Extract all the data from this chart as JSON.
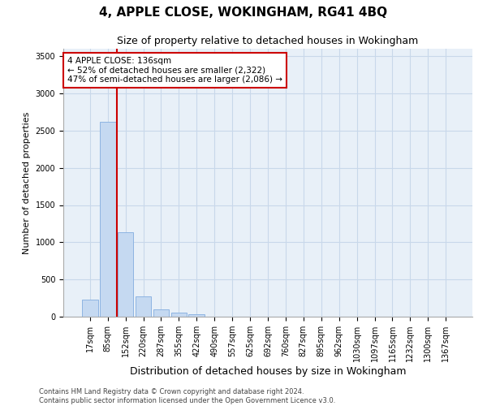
{
  "title": "4, APPLE CLOSE, WOKINGHAM, RG41 4BQ",
  "subtitle": "Size of property relative to detached houses in Wokingham",
  "xlabel": "Distribution of detached houses by size in Wokingham",
  "ylabel": "Number of detached properties",
  "bar_labels": [
    "17sqm",
    "85sqm",
    "152sqm",
    "220sqm",
    "287sqm",
    "355sqm",
    "422sqm",
    "490sqm",
    "557sqm",
    "625sqm",
    "692sqm",
    "760sqm",
    "827sqm",
    "895sqm",
    "962sqm",
    "1030sqm",
    "1097sqm",
    "1165sqm",
    "1232sqm",
    "1300sqm",
    "1367sqm"
  ],
  "bar_values": [
    230,
    2620,
    1130,
    270,
    100,
    50,
    30,
    0,
    0,
    0,
    0,
    0,
    0,
    0,
    0,
    0,
    0,
    0,
    0,
    0,
    0
  ],
  "bar_color": "#c5d9f1",
  "bar_edge_color": "#8db4e2",
  "ylim": [
    0,
    3600
  ],
  "yticks": [
    0,
    500,
    1000,
    1500,
    2000,
    2500,
    3000,
    3500
  ],
  "annotation_text": "4 APPLE CLOSE: 136sqm\n← 52% of detached houses are smaller (2,322)\n47% of semi-detached houses are larger (2,086) →",
  "annotation_box_color": "#ffffff",
  "annotation_box_edge_color": "#cc0000",
  "vline_color": "#cc0000",
  "vline_x": 1,
  "footer_line1": "Contains HM Land Registry data © Crown copyright and database right 2024.",
  "footer_line2": "Contains public sector information licensed under the Open Government Licence v3.0.",
  "background_color": "#ffffff",
  "grid_color": "#c8d8ea",
  "title_fontsize": 11,
  "subtitle_fontsize": 9,
  "axis_label_fontsize": 8,
  "tick_fontsize": 7,
  "annotation_fontsize": 7.5,
  "footer_fontsize": 6
}
